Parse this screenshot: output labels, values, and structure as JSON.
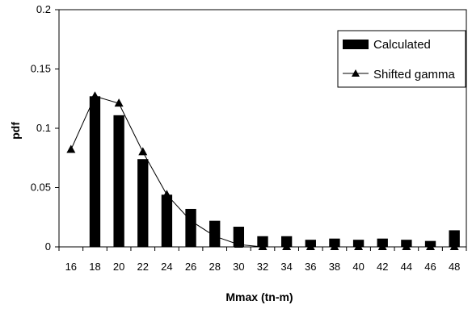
{
  "chart_data": {
    "type": "bar",
    "categories": [
      "16",
      "18",
      "20",
      "22",
      "24",
      "26",
      "28",
      "30",
      "32",
      "34",
      "36",
      "38",
      "40",
      "42",
      "44",
      "46",
      "48"
    ],
    "xlabel": "Mmax (tn-m)",
    "ylabel": "pdf",
    "ylim": [
      0,
      0.2
    ],
    "yticks": [
      "0",
      "0.05",
      "0.1",
      "0.15",
      "0.2"
    ],
    "ytick_values": [
      0,
      0.05,
      0.1,
      0.15,
      0.2
    ],
    "grid": false,
    "legend_position": "top-right",
    "series": [
      {
        "name": "Calculated",
        "kind": "bar",
        "color": "#000000",
        "values": [
          null,
          0.127,
          0.111,
          0.074,
          0.044,
          0.032,
          0.022,
          0.017,
          0.009,
          0.009,
          0.006,
          0.007,
          0.006,
          0.007,
          0.006,
          0.005,
          0.014
        ]
      },
      {
        "name": "Shifted gamma",
        "kind": "line-triangle",
        "color": "#000000",
        "values": [
          0.082,
          0.127,
          0.121,
          0.08,
          0.044,
          0.022,
          0.009,
          0.002,
          0,
          0,
          0,
          0,
          0,
          0,
          0,
          0,
          0
        ]
      }
    ]
  }
}
